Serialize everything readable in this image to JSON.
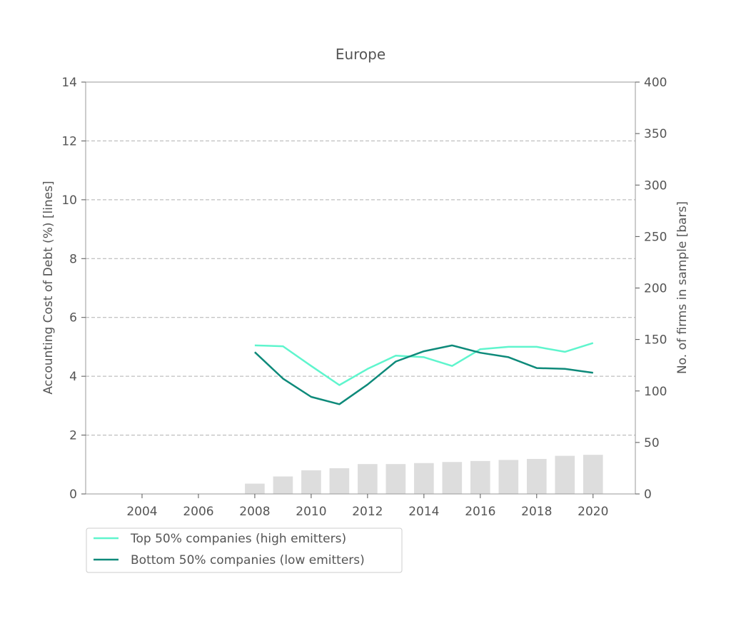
{
  "chart_data": {
    "type": "line",
    "title": "Europe",
    "ylabel": "Accounting Cost of Debt (%)  [lines]",
    "y2label": "No. of firms in sample [bars]",
    "xlim": [
      2002.0,
      2021.5
    ],
    "ylim": [
      0,
      14
    ],
    "y2lim": [
      0,
      400
    ],
    "x_ticks": [
      "2004",
      "2006",
      "2008",
      "2010",
      "2012",
      "2014",
      "2016",
      "2018",
      "2020"
    ],
    "y_ticks": [
      "0",
      "2",
      "4",
      "6",
      "8",
      "10",
      "12",
      "14"
    ],
    "y2_ticks": [
      "0",
      "50",
      "100",
      "150",
      "200",
      "250",
      "300",
      "350",
      "400"
    ],
    "grid": "horizontal dashed",
    "legend_position": "below-left",
    "x": [
      2008,
      2009,
      2010,
      2011,
      2012,
      2013,
      2014,
      2015,
      2016,
      2017,
      2018,
      2019,
      2020
    ],
    "series": [
      {
        "name": "Top 50% companies (high emitters)",
        "color": "#5ff5cd",
        "values": [
          5.05,
          5.02,
          4.35,
          3.7,
          4.25,
          4.7,
          4.65,
          4.35,
          4.92,
          5.0,
          5.0,
          4.83,
          5.13
        ]
      },
      {
        "name": "Bottom 50% companies (low emitters)",
        "color": "#0e8a7a",
        "values": [
          4.82,
          3.92,
          3.3,
          3.05,
          3.72,
          4.5,
          4.85,
          5.05,
          4.8,
          4.65,
          4.28,
          4.25,
          4.12
        ]
      }
    ],
    "bars": {
      "color": "#dddddd",
      "values": [
        10,
        17,
        23,
        25,
        29,
        29,
        30,
        31,
        32,
        33,
        34,
        37,
        38
      ]
    }
  }
}
